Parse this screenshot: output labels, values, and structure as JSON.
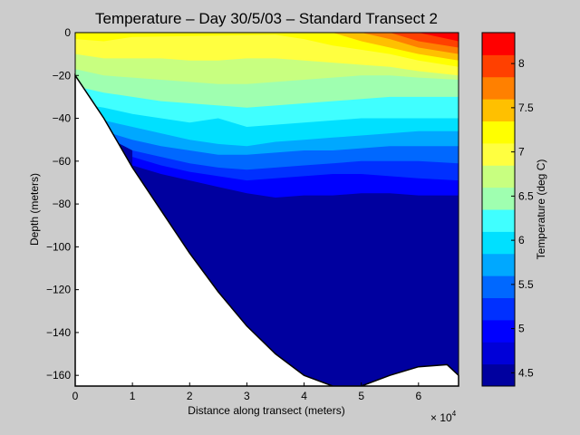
{
  "chart_data": {
    "type": "contourf",
    "title": "Temperature – Day 30/5/03 – Standard Transect 2",
    "xlabel": "Distance along transect (meters)",
    "ylabel": "Depth (meters)",
    "x_exponent_label": "× 10",
    "x_exponent_power": "4",
    "xlim": [
      0,
      67000
    ],
    "ylim": [
      -165,
      0
    ],
    "x_ticks": [
      0,
      10000,
      20000,
      30000,
      40000,
      50000,
      60000
    ],
    "x_tick_labels": [
      "0",
      "1",
      "2",
      "3",
      "4",
      "5",
      "6"
    ],
    "y_ticks": [
      0,
      -20,
      -40,
      -60,
      -80,
      -100,
      -120,
      -140,
      -160
    ],
    "y_tick_labels": [
      "0",
      "−20",
      "−40",
      "−60",
      "−80",
      "−100",
      "−120",
      "−140",
      "−160"
    ],
    "colorbar": {
      "label": "Temperature (deg C)",
      "clim": [
        4.35,
        8.35
      ],
      "ticks": [
        4.5,
        5,
        5.5,
        6,
        6.5,
        7,
        7.5,
        8
      ],
      "tick_labels": [
        "4.5",
        "5",
        "5.5",
        "6",
        "6.5",
        "7",
        "7.5",
        "8"
      ],
      "levels": [
        4.35,
        4.6,
        4.85,
        5.1,
        5.35,
        5.6,
        5.85,
        6.1,
        6.35,
        6.6,
        6.85,
        7.1,
        7.35,
        7.6,
        7.85,
        8.1,
        8.35
      ],
      "colors": [
        "#00009f",
        "#0000d8",
        "#0000ff",
        "#0030ff",
        "#0068ff",
        "#00a8ff",
        "#00e0ff",
        "#40ffff",
        "#9fffb0",
        "#c8ff80",
        "#ffff40",
        "#ffff00",
        "#ffc000",
        "#ff8000",
        "#ff4000",
        "#ff0000",
        "#bf0000"
      ]
    },
    "bottom_profile": [
      [
        0,
        -20
      ],
      [
        5000,
        -40
      ],
      [
        10000,
        -63
      ],
      [
        15000,
        -83
      ],
      [
        20000,
        -103
      ],
      [
        25000,
        -121
      ],
      [
        30000,
        -137
      ],
      [
        35000,
        -150
      ],
      [
        40000,
        -160
      ],
      [
        45000,
        -165
      ],
      [
        50000,
        -165
      ],
      [
        55000,
        -160
      ],
      [
        60000,
        -156
      ],
      [
        65000,
        -155
      ],
      [
        67000,
        -160
      ]
    ],
    "isotherm_depths": {
      "x": [
        0,
        5000,
        10000,
        15000,
        20000,
        25000,
        30000,
        35000,
        40000,
        45000,
        50000,
        55000,
        60000,
        67000
      ],
      "lines": [
        {
          "t": 4.85,
          "z": [
            null,
            null,
            -62,
            -66,
            -69,
            -72,
            -75,
            -77,
            -76,
            -76,
            -75,
            -75,
            -76,
            -76
          ]
        },
        {
          "t": 5.1,
          "z": [
            null,
            null,
            -58,
            -62,
            -65,
            -67,
            -69,
            -68,
            -67,
            -66,
            -66,
            -67,
            -68,
            -69
          ]
        },
        {
          "t": 5.35,
          "z": [
            null,
            -48,
            -55,
            -58,
            -61,
            -63,
            -64,
            -63,
            -62,
            -61,
            -60,
            -60,
            -60,
            -61
          ]
        },
        {
          "t": 5.6,
          "z": [
            -46,
            -46,
            -50,
            -53,
            -55,
            -57,
            -57,
            -56,
            -55,
            -55,
            -54,
            -53,
            -53,
            -53
          ]
        },
        {
          "t": 5.85,
          "z": [
            -40,
            -41,
            -44,
            -47,
            -50,
            -52,
            -53,
            -51,
            -50,
            -49,
            -48,
            -47,
            -46,
            -46
          ]
        },
        {
          "t": 6.1,
          "z": [
            -33,
            -35,
            -38,
            -40,
            -42,
            -40,
            -44,
            -43,
            -42,
            -41,
            -40,
            -40,
            -40,
            -40
          ]
        },
        {
          "t": 6.35,
          "z": [
            -25,
            -28,
            -30,
            -32,
            -33,
            -34,
            -35,
            -34,
            -33,
            -32,
            -31,
            -30,
            -30,
            -30
          ]
        },
        {
          "t": 6.6,
          "z": [
            -17,
            -20,
            -21,
            -22,
            -23,
            -24,
            -24,
            -23,
            -22,
            -21,
            -20,
            -20,
            -21,
            -22
          ]
        },
        {
          "t": 6.85,
          "z": [
            -10,
            -12,
            -12,
            -12,
            -13,
            -13,
            -12,
            -12,
            -13,
            -14,
            -15,
            -16,
            -18,
            -20
          ]
        },
        {
          "t": 7.1,
          "z": [
            -3,
            -4,
            -2,
            null,
            null,
            null,
            null,
            -1,
            -3,
            -6,
            -8,
            -10,
            -13,
            -16
          ]
        },
        {
          "t": 7.35,
          "z": [
            null,
            null,
            null,
            null,
            null,
            null,
            null,
            null,
            null,
            0,
            -4,
            -7,
            -10,
            -13
          ]
        },
        {
          "t": 7.6,
          "z": [
            null,
            null,
            null,
            null,
            null,
            null,
            null,
            null,
            null,
            null,
            0,
            -3,
            -7,
            -10
          ]
        },
        {
          "t": 7.85,
          "z": [
            null,
            null,
            null,
            null,
            null,
            null,
            null,
            null,
            null,
            null,
            null,
            0,
            -4,
            -7
          ]
        },
        {
          "t": 8.1,
          "z": [
            null,
            null,
            null,
            null,
            null,
            null,
            null,
            null,
            null,
            null,
            null,
            null,
            0,
            -4
          ]
        }
      ]
    }
  }
}
